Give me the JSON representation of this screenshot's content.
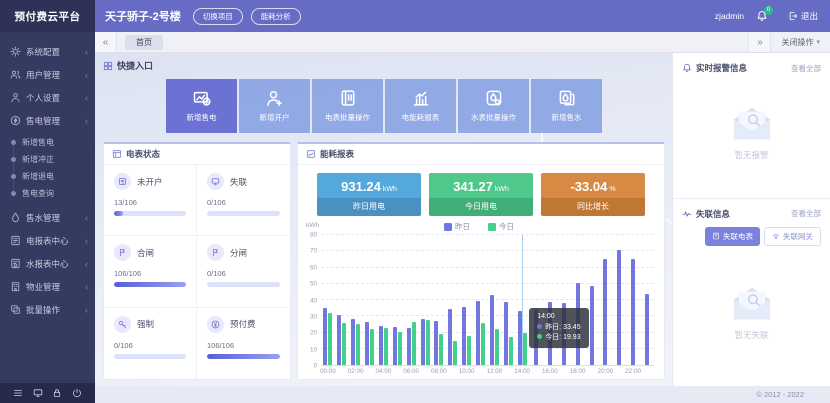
{
  "app": {
    "name": "预付费云平台",
    "copyright": "© 2012 - 2022"
  },
  "topbar": {
    "project": "天子骄子-2号楼",
    "switch_project": "切换项目",
    "energy_analysis": "能耗分析",
    "username": "zjadmin",
    "notification_count": "0",
    "logout": "退出"
  },
  "tabbar": {
    "active_tab": "首页",
    "close_ops": "关闭操作"
  },
  "sidebar": {
    "items": [
      {
        "label": "系统配置",
        "icon": "gear"
      },
      {
        "label": "用户管理",
        "icon": "users"
      },
      {
        "label": "个人设置",
        "icon": "person"
      },
      {
        "label": "售电管理",
        "icon": "bolt-circle",
        "expanded": true,
        "children": [
          "新增售电",
          "新增冲正",
          "新增退电",
          "售电查询"
        ]
      },
      {
        "label": "售水管理",
        "icon": "water"
      },
      {
        "label": "电报表中心",
        "icon": "report-electric"
      },
      {
        "label": "水报表中心",
        "icon": "report-water"
      },
      {
        "label": "物业管理",
        "icon": "building"
      },
      {
        "label": "批量操作",
        "icon": "batch"
      }
    ],
    "footer_icons": [
      "menu",
      "monitor",
      "lock",
      "power"
    ]
  },
  "quick_entry": {
    "title": "快捷入口",
    "icon": "grid",
    "buttons": [
      {
        "label": "新增售电",
        "icon": "card-plus",
        "primary": true
      },
      {
        "label": "新增开户",
        "icon": "person-plus"
      },
      {
        "label": "电表批量操作",
        "icon": "meter-batch"
      },
      {
        "label": "电能耗报表",
        "icon": "chart-bars"
      },
      {
        "label": "水表批量操作",
        "icon": "water-gear"
      },
      {
        "label": "新增售水",
        "icon": "droplet-copy"
      }
    ]
  },
  "meter_status": {
    "title": "电表状态",
    "icon": "panel-meter",
    "cards": [
      {
        "label": "未开户",
        "value": "13/106",
        "pct": 12,
        "icon": "meter-doc"
      },
      {
        "label": "失联",
        "value": "0/106",
        "pct": 0,
        "icon": "offline-monitor"
      },
      {
        "label": "合闸",
        "value": "106/106",
        "pct": 100,
        "icon": "flag-on"
      },
      {
        "label": "分闸",
        "value": "0/106",
        "pct": 0,
        "icon": "flag-off"
      },
      {
        "label": "强制",
        "value": "0/106",
        "pct": 0,
        "icon": "key"
      },
      {
        "label": "预付费",
        "value": "106/106",
        "pct": 100,
        "icon": "yuan-circle"
      }
    ]
  },
  "energy_report": {
    "title": "能耗报表",
    "icon": "panel-report",
    "stats": [
      {
        "value": "931.24",
        "unit": "kWh",
        "label": "昨日用电",
        "bg": "#55a8db",
        "label_bg": "#4a90c0"
      },
      {
        "value": "341.27",
        "unit": "kWh",
        "label": "今日用电",
        "bg": "#4ec98b",
        "label_bg": "#3fae77"
      },
      {
        "value": "-33.04",
        "unit": "%",
        "label": "同比增长",
        "bg": "#d88a44",
        "label_bg": "#c17734"
      }
    ]
  },
  "chart_data": {
    "type": "bar",
    "unit_label": "kWh",
    "ylim": [
      0,
      80
    ],
    "yticks": [
      0,
      10,
      20,
      30,
      40,
      50,
      60,
      70,
      80
    ],
    "grid": true,
    "legend_position": "top",
    "categories": [
      "00:00",
      "01:00",
      "02:00",
      "03:00",
      "04:00",
      "05:00",
      "06:00",
      "07:00",
      "08:00",
      "09:00",
      "10:00",
      "11:00",
      "12:00",
      "13:00",
      "14:00",
      "15:00",
      "16:00",
      "17:00",
      "18:00",
      "19:00",
      "20:00",
      "21:00",
      "22:00",
      "23:00"
    ],
    "xtick_labels": [
      "00:00",
      "02:00",
      "04:00",
      "06:00",
      "08:00",
      "10:00",
      "12:00",
      "14:00",
      "16:00",
      "18:00",
      "20:00",
      "22:00"
    ],
    "series": [
      {
        "name": "昨日",
        "color": "#7277e0",
        "values": [
          35,
          31,
          28.5,
          26.5,
          24,
          23.5,
          23,
          28.5,
          27,
          34.5,
          35.5,
          39.5,
          43,
          38.5,
          33.45,
          34.5,
          39,
          38,
          50.5,
          48.5,
          65,
          71,
          65.5,
          43.5
        ]
      },
      {
        "name": "今日",
        "color": "#43cf8c",
        "values": [
          32,
          26,
          25,
          22,
          22.5,
          20.5,
          26.5,
          28,
          19,
          14.5,
          18,
          26,
          22,
          17.5,
          19.93
        ]
      }
    ],
    "tooltip": {
      "index": 14,
      "title": "14:00",
      "rows": [
        {
          "series": "昨日",
          "value": "33.45"
        },
        {
          "series": "今日",
          "value": "19.93"
        }
      ]
    }
  },
  "alarm_panel": {
    "title": "实时报警信息",
    "icon": "bell",
    "view_all": "查看全部",
    "empty_text": "暂无报警"
  },
  "offline_panel": {
    "title": "失联信息",
    "icon": "pulse",
    "view_all": "查看全部",
    "filter_active": "失联电表",
    "filter_inactive": "失联网关",
    "empty_text": "暂无失联"
  }
}
